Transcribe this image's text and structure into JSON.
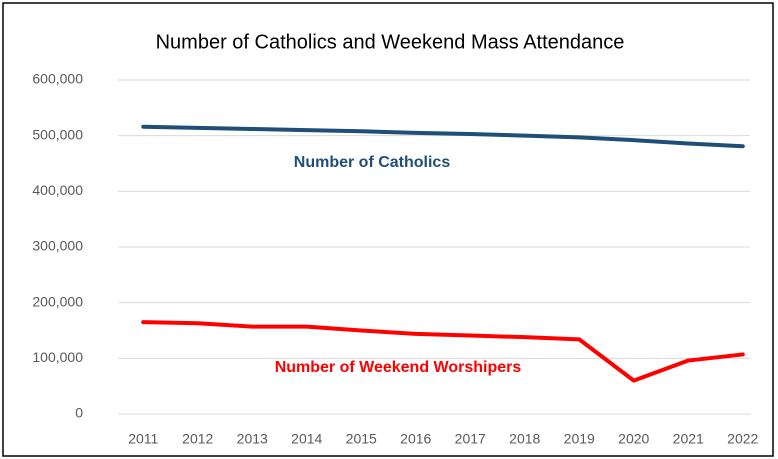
{
  "chart_data": {
    "type": "line",
    "title": "Number of Catholics and Weekend Mass Attendance",
    "categories": [
      "2011",
      "2012",
      "2013",
      "2014",
      "2015",
      "2016",
      "2017",
      "2018",
      "2019",
      "2020",
      "2021",
      "2022"
    ],
    "series": [
      {
        "name": "Number of Catholics",
        "color": "#1f4e79",
        "values": [
          516000,
          514000,
          512000,
          510000,
          508000,
          505000,
          503000,
          500000,
          497000,
          492000,
          486000,
          481000
        ]
      },
      {
        "name": "Number of Weekend Worshipers",
        "color": "#ff0000",
        "values": [
          165000,
          163000,
          157000,
          157000,
          150000,
          144000,
          141000,
          138000,
          134000,
          60000,
          96000,
          107000
        ]
      }
    ],
    "ylim": [
      0,
      600000
    ],
    "yticks": [
      0,
      {
        "value": 100000,
        "label": "100,000"
      },
      {
        "value": 200000,
        "label": "200,000"
      },
      {
        "value": 300000,
        "label": "300,000"
      },
      {
        "value": 400000,
        "label": "400,000"
      },
      {
        "value": 500000,
        "label": "500,000"
      },
      {
        "value": 600000,
        "label": "600,000"
      }
    ],
    "grid": true
  }
}
